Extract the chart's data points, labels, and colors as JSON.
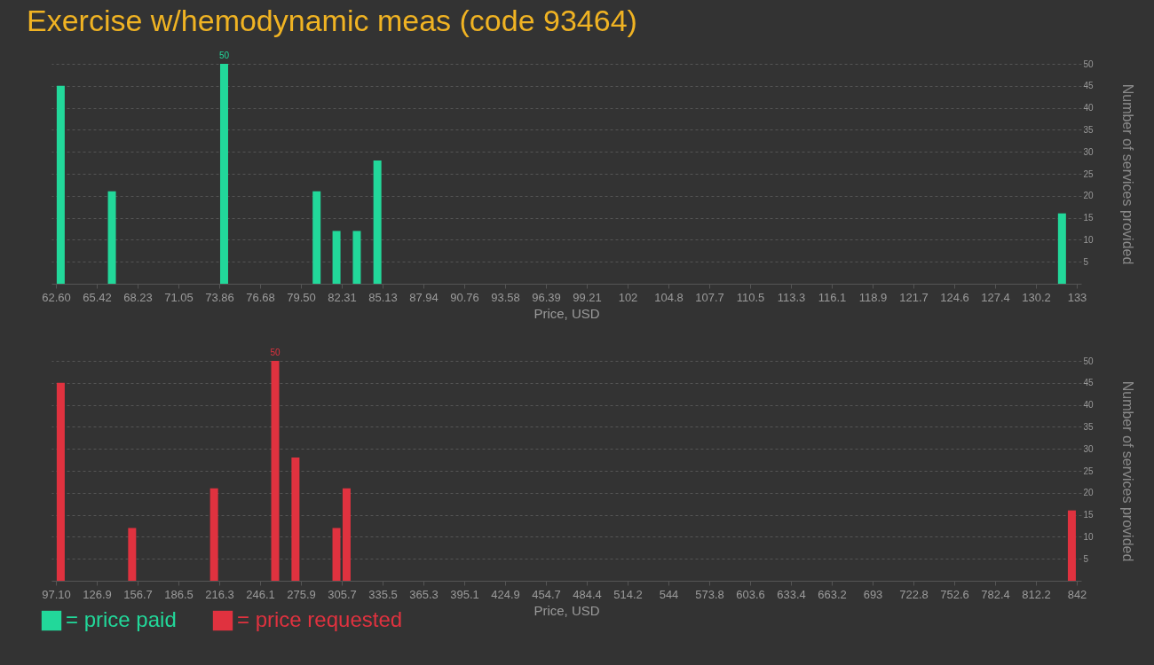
{
  "chart_data": [
    {
      "type": "bar",
      "title": "Exercise w/hemodynamic meas (code 93464)",
      "xlabel": "Price, USD",
      "ylabel": "Number of services provided",
      "x": [
        62.93,
        66.46,
        74.2,
        80.58,
        81.95,
        83.35,
        84.77,
        131.98
      ],
      "series": [
        {
          "name": "= price paid",
          "color": "#22d89a",
          "values": [
            45,
            21,
            50,
            21,
            12,
            12,
            28,
            16
          ],
          "value_labels": [
            null,
            null,
            "50",
            null,
            null,
            null,
            null,
            null
          ]
        }
      ],
      "xlim": [
        62.6,
        133
      ],
      "xticks": [
        {
          "value": 62.6,
          "label": "62.60"
        },
        {
          "value": 65.416,
          "label": "65.42"
        },
        {
          "value": 68.232,
          "label": "68.23"
        },
        {
          "value": 71.048,
          "label": "71.05"
        },
        {
          "value": 73.864,
          "label": "73.86"
        },
        {
          "value": 76.68,
          "label": "76.68"
        },
        {
          "value": 79.496,
          "label": "79.50"
        },
        {
          "value": 82.312,
          "label": "82.31"
        },
        {
          "value": 85.128,
          "label": "85.13"
        },
        {
          "value": 87.944,
          "label": "87.94"
        },
        {
          "value": 90.76,
          "label": "90.76"
        },
        {
          "value": 93.576,
          "label": "93.58"
        },
        {
          "value": 96.392,
          "label": "96.39"
        },
        {
          "value": 99.208,
          "label": "99.21"
        },
        {
          "value": 102.024,
          "label": "102"
        },
        {
          "value": 104.84,
          "label": "104.8"
        },
        {
          "value": 107.656,
          "label": "107.7"
        },
        {
          "value": 110.472,
          "label": "110.5"
        },
        {
          "value": 113.288,
          "label": "113.3"
        },
        {
          "value": 116.104,
          "label": "116.1"
        },
        {
          "value": 118.92,
          "label": "118.9"
        },
        {
          "value": 121.736,
          "label": "121.7"
        },
        {
          "value": 124.552,
          "label": "124.6"
        },
        {
          "value": 127.368,
          "label": "127.4"
        },
        {
          "value": 130.184,
          "label": "130.2"
        },
        {
          "value": 133,
          "label": "133"
        }
      ],
      "ylim": [
        0,
        50
      ],
      "yticks": [
        5,
        10,
        15,
        20,
        25,
        30,
        35,
        40,
        45,
        50
      ],
      "grid": "y",
      "legend": "bottom left"
    },
    {
      "type": "bar",
      "xlabel": "Price, USD",
      "ylabel": "Number of services provided",
      "x": [
        100.6,
        152.7,
        212.5,
        257.1,
        271.9,
        301.8,
        309.2,
        838.4
      ],
      "series": [
        {
          "name": "= price requested",
          "color": "#e0323f",
          "values": [
            45,
            12,
            21,
            50,
            28,
            12,
            21,
            16
          ],
          "value_labels": [
            null,
            null,
            null,
            "50",
            null,
            null,
            null,
            null
          ]
        }
      ],
      "xlim": [
        97.1,
        842
      ],
      "xticks": [
        {
          "value": 97.1,
          "label": "97.10"
        },
        {
          "value": 126.896,
          "label": "126.9"
        },
        {
          "value": 156.692,
          "label": "156.7"
        },
        {
          "value": 186.488,
          "label": "186.5"
        },
        {
          "value": 216.284,
          "label": "216.3"
        },
        {
          "value": 246.08,
          "label": "246.1"
        },
        {
          "value": 275.876,
          "label": "275.9"
        },
        {
          "value": 305.672,
          "label": "305.7"
        },
        {
          "value": 335.468,
          "label": "335.5"
        },
        {
          "value": 365.264,
          "label": "365.3"
        },
        {
          "value": 395.06,
          "label": "395.1"
        },
        {
          "value": 424.856,
          "label": "424.9"
        },
        {
          "value": 454.652,
          "label": "454.7"
        },
        {
          "value": 484.448,
          "label": "484.4"
        },
        {
          "value": 514.244,
          "label": "514.2"
        },
        {
          "value": 544.04,
          "label": "544"
        },
        {
          "value": 573.836,
          "label": "573.8"
        },
        {
          "value": 603.632,
          "label": "603.6"
        },
        {
          "value": 633.428,
          "label": "633.4"
        },
        {
          "value": 663.224,
          "label": "663.2"
        },
        {
          "value": 693.02,
          "label": "693"
        },
        {
          "value": 722.816,
          "label": "722.8"
        },
        {
          "value": 752.612,
          "label": "752.6"
        },
        {
          "value": 782.408,
          "label": "782.4"
        },
        {
          "value": 812.204,
          "label": "812.2"
        },
        {
          "value": 842,
          "label": "842"
        }
      ],
      "ylim": [
        0,
        50
      ],
      "yticks": [
        5,
        10,
        15,
        20,
        25,
        30,
        35,
        40,
        45,
        50
      ],
      "grid": "y",
      "legend": "bottom left"
    }
  ]
}
